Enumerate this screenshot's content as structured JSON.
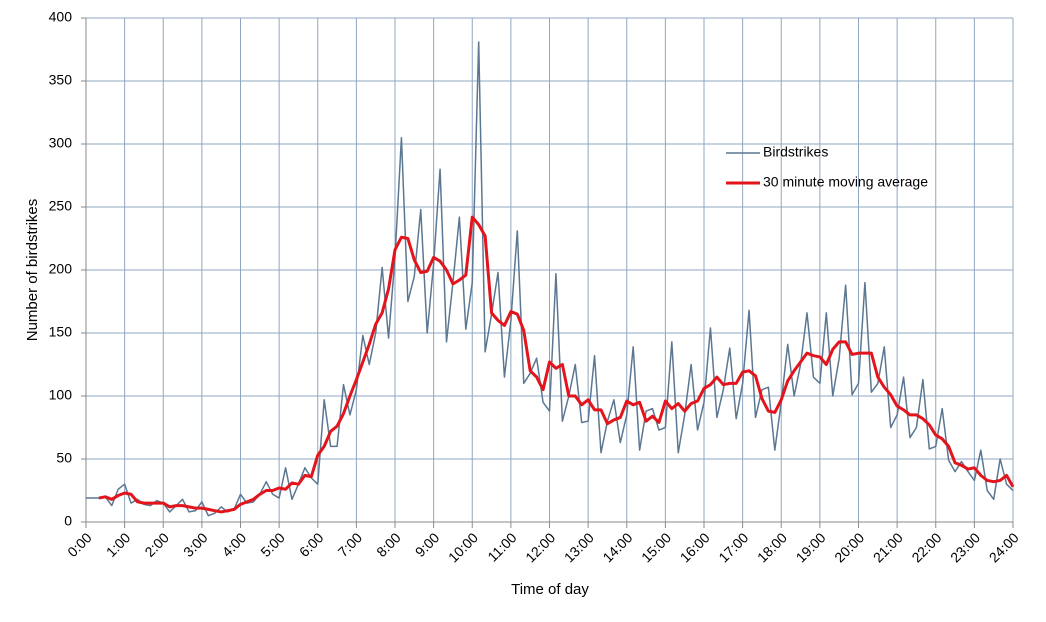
{
  "chart_data": {
    "type": "line",
    "x_label": "Time of day",
    "y_label": "Number of birdstrikes",
    "x": [
      0,
      10,
      20,
      30,
      40,
      50,
      60,
      70,
      80,
      90,
      100,
      110,
      120,
      130,
      140,
      150,
      160,
      170,
      180,
      190,
      200,
      210,
      220,
      230,
      240,
      250,
      260,
      270,
      280,
      290,
      300,
      310,
      320,
      330,
      340,
      350,
      360,
      370,
      380,
      390,
      400,
      410,
      420,
      430,
      440,
      450,
      460,
      470,
      480,
      490,
      500,
      510,
      520,
      530,
      540,
      550,
      560,
      570,
      580,
      590,
      600,
      610,
      620,
      630,
      640,
      650,
      660,
      670,
      680,
      690,
      700,
      710,
      720,
      730,
      740,
      750,
      760,
      770,
      780,
      790,
      800,
      810,
      820,
      830,
      840,
      850,
      860,
      870,
      880,
      890,
      900,
      910,
      920,
      930,
      940,
      950,
      960,
      970,
      980,
      990,
      1000,
      1010,
      1020,
      1030,
      1040,
      1050,
      1060,
      1070,
      1080,
      1090,
      1100,
      1110,
      1120,
      1130,
      1140,
      1150,
      1160,
      1170,
      1180,
      1190,
      1200,
      1210,
      1220,
      1230,
      1240,
      1250,
      1260,
      1270,
      1280,
      1290,
      1300,
      1310,
      1320,
      1330,
      1340,
      1350,
      1360,
      1370,
      1380,
      1390,
      1400,
      1410,
      1420,
      1430,
      1440
    ],
    "series": [
      {
        "name": "Birdstrikes",
        "color": "#5b7791",
        "width": 1.5,
        "values": [
          19,
          19,
          19,
          20,
          13,
          26,
          30,
          15,
          18,
          14,
          13,
          17,
          15,
          8,
          13,
          18,
          8,
          9,
          16,
          5,
          7,
          12,
          8,
          10,
          22,
          15,
          16,
          22,
          32,
          22,
          19,
          43,
          18,
          30,
          43,
          35,
          30,
          97,
          60,
          60,
          109,
          85,
          105,
          148,
          125,
          150,
          202,
          146,
          210,
          305,
          175,
          195,
          248,
          150,
          205,
          280,
          143,
          190,
          242,
          153,
          190,
          381,
          135,
          165,
          198,
          115,
          160,
          231,
          110,
          118,
          130,
          95,
          88,
          197,
          80,
          100,
          125,
          79,
          80,
          132,
          55,
          80,
          97,
          63,
          85,
          139,
          57,
          88,
          90,
          73,
          75,
          143,
          55,
          85,
          125,
          73,
          95,
          154,
          83,
          105,
          138,
          82,
          110,
          168,
          83,
          105,
          107,
          57,
          95,
          141,
          100,
          125,
          166,
          115,
          110,
          166,
          100,
          130,
          188,
          101,
          110,
          190,
          103,
          110,
          139,
          75,
          85,
          115,
          67,
          75,
          113,
          58,
          60,
          90,
          49,
          40,
          48,
          40,
          33,
          57,
          25,
          18,
          50,
          30,
          25
        ]
      },
      {
        "name": "30 minute moving average",
        "color": "#e3141b",
        "width": 3,
        "values": [
          null,
          null,
          19,
          20,
          18,
          21,
          23,
          22,
          16,
          15,
          15,
          15,
          15,
          12,
          13,
          13,
          12,
          11,
          11,
          10,
          9,
          8,
          9,
          10,
          14,
          16,
          18,
          22,
          25,
          25,
          27,
          26,
          31,
          30,
          37,
          36,
          53,
          60,
          72,
          76,
          86,
          100,
          113,
          127,
          141,
          157,
          166,
          185,
          216,
          226,
          225,
          208,
          198,
          199,
          210,
          207,
          200,
          189,
          192,
          196,
          242,
          236,
          227,
          166,
          160,
          156,
          167,
          165,
          152,
          120,
          115,
          105,
          127,
          122,
          125,
          100,
          100,
          93,
          97,
          89,
          89,
          78,
          81,
          83,
          96,
          93,
          95,
          80,
          84,
          79,
          96,
          90,
          94,
          88,
          94,
          96,
          106,
          109,
          115,
          109,
          110,
          110,
          119,
          120,
          116,
          98,
          88,
          87,
          97,
          112,
          120,
          127,
          134,
          132,
          131,
          125,
          137,
          143,
          143,
          133,
          134,
          134,
          134,
          115,
          107,
          101,
          92,
          89,
          85,
          85,
          82,
          77,
          69,
          66,
          60,
          47,
          45,
          42,
          43,
          37,
          33,
          32,
          33,
          37,
          28
        ]
      }
    ],
    "xlim": [
      0,
      1440
    ],
    "xticks": [
      {
        "value": 0,
        "label": "0:00"
      },
      {
        "value": 60,
        "label": "1:00"
      },
      {
        "value": 120,
        "label": "2:00"
      },
      {
        "value": 180,
        "label": "3:00"
      },
      {
        "value": 240,
        "label": "4:00"
      },
      {
        "value": 300,
        "label": "5:00"
      },
      {
        "value": 360,
        "label": "6:00"
      },
      {
        "value": 420,
        "label": "7:00"
      },
      {
        "value": 480,
        "label": "8:00"
      },
      {
        "value": 540,
        "label": "9:00"
      },
      {
        "value": 600,
        "label": "10:00"
      },
      {
        "value": 660,
        "label": "11:00"
      },
      {
        "value": 720,
        "label": "12:00"
      },
      {
        "value": 780,
        "label": "13:00"
      },
      {
        "value": 840,
        "label": "14:00"
      },
      {
        "value": 900,
        "label": "15:00"
      },
      {
        "value": 960,
        "label": "16:00"
      },
      {
        "value": 1020,
        "label": "17:00"
      },
      {
        "value": 1080,
        "label": "18:00"
      },
      {
        "value": 1140,
        "label": "19:00"
      },
      {
        "value": 1200,
        "label": "20:00"
      },
      {
        "value": 1260,
        "label": "21:00"
      },
      {
        "value": 1320,
        "label": "22:00"
      },
      {
        "value": 1380,
        "label": "23:00"
      },
      {
        "value": 1440,
        "label": "24:00"
      }
    ],
    "ylim": [
      0,
      400
    ],
    "yticks": [
      0,
      50,
      100,
      150,
      200,
      250,
      300,
      350,
      400
    ],
    "grid": true,
    "legend": "right"
  }
}
